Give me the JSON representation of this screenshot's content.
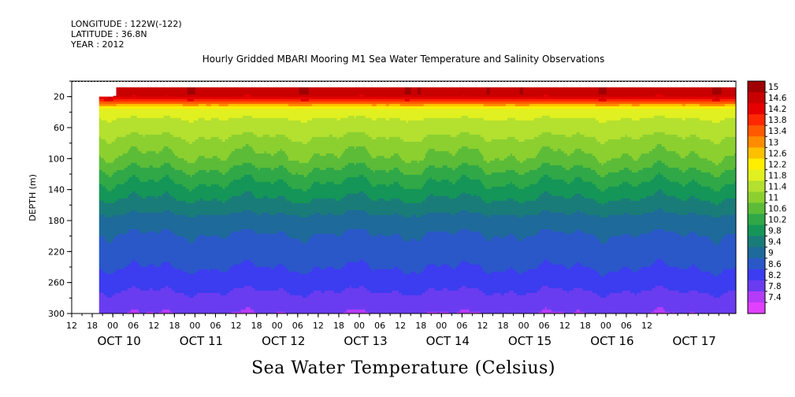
{
  "metadata": {
    "longitude": "LONGITUDE : 122W(-122)",
    "latitude": "LATITUDE : 36.8N",
    "year": "YEAR : 2012"
  },
  "chart_data": {
    "type": "heatmap",
    "title": "Hourly Gridded MBARI Mooring M1 Sea Water Temperature and Salinity Observations",
    "caption": "Sea Water Temperature (Celsius)",
    "ylabel": "DEPTH (m)",
    "xlabel": "",
    "x_range_hours": [
      "OCT 9 12:00",
      "OCT 17 14:00"
    ],
    "y_axis": {
      "range": [
        0,
        300
      ],
      "inverted": true,
      "tick_labels": [
        "20",
        "60",
        "100",
        "140",
        "180",
        "220",
        "260",
        "300"
      ]
    },
    "x_hour_tick_labels": [
      "12",
      "18",
      "00",
      "06",
      "12",
      "18",
      "00",
      "06",
      "12",
      "18",
      "00",
      "06",
      "12",
      "18",
      "00",
      "06",
      "12",
      "18",
      "00",
      "06",
      "12",
      "18",
      "00",
      "06",
      "12",
      "18",
      "00",
      "06",
      "12"
    ],
    "x_day_labels": [
      "OCT 10",
      "OCT 11",
      "OCT 12",
      "OCT 13",
      "OCT 14",
      "OCT 15",
      "OCT 16",
      "OCT 17"
    ],
    "data_start": "OCT 9 20:00",
    "data_depth_range_m": [
      20,
      300
    ],
    "colorbar": {
      "levels": [
        "15",
        "14.6",
        "14.2",
        "13.8",
        "13.4",
        "13",
        "12.6",
        "12.2",
        "11.8",
        "11.4",
        "11",
        "10.6",
        "10.2",
        "9.8",
        "9.4",
        "9",
        "8.6",
        "8.2",
        "7.8",
        "7.4"
      ],
      "colors": [
        "#a00000",
        "#c80000",
        "#e60000",
        "#ff2800",
        "#ff5a00",
        "#ff8c00",
        "#ffc000",
        "#ffee00",
        "#e0f020",
        "#b4e030",
        "#8cd030",
        "#5cbc38",
        "#30a848",
        "#159658",
        "#1a7c78",
        "#1e6a9a",
        "#2a58c8",
        "#3c3cf0",
        "#6a3cf0",
        "#b43cf8",
        "#e040ff"
      ]
    },
    "profile": [
      {
        "depth": 15,
        "temp": 14.9
      },
      {
        "depth": 22,
        "temp": 14.3
      },
      {
        "depth": 28,
        "temp": 13.3
      },
      {
        "depth": 32,
        "temp": 12.3
      },
      {
        "depth": 40,
        "temp": 11.9
      },
      {
        "depth": 60,
        "temp": 11.6
      },
      {
        "depth": 80,
        "temp": 11.2
      },
      {
        "depth": 100,
        "temp": 10.9
      },
      {
        "depth": 120,
        "temp": 10.4
      },
      {
        "depth": 140,
        "temp": 10.0
      },
      {
        "depth": 160,
        "temp": 9.6
      },
      {
        "depth": 180,
        "temp": 9.2
      },
      {
        "depth": 200,
        "temp": 8.95
      },
      {
        "depth": 220,
        "temp": 8.8
      },
      {
        "depth": 240,
        "temp": 8.6
      },
      {
        "depth": 260,
        "temp": 8.35
      },
      {
        "depth": 280,
        "temp": 8.05
      },
      {
        "depth": 300,
        "temp": 7.8
      }
    ]
  }
}
